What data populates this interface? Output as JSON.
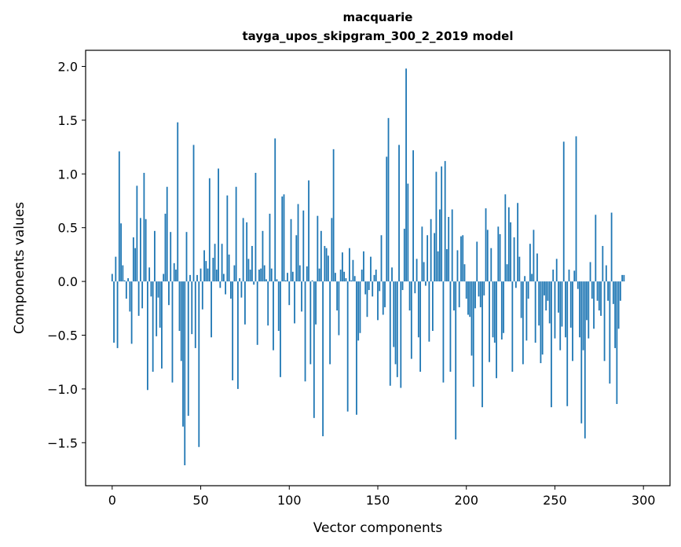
{
  "chart_data": {
    "type": "bar",
    "title": "macquarie",
    "subtitle": "tayga_upos_skipgram_300_2_2019 model",
    "xlabel": "Vector components",
    "ylabel": "Components values",
    "xlim": [
      -15,
      315
    ],
    "ylim": [
      -1.9,
      2.15
    ],
    "xticks": [
      0,
      50,
      100,
      150,
      200,
      250,
      300
    ],
    "xtick_labels": [
      "0",
      "50",
      "100",
      "150",
      "200",
      "250",
      "300"
    ],
    "yticks": [
      -1.5,
      -1.0,
      -0.5,
      0.0,
      0.5,
      1.0,
      1.5,
      2.0
    ],
    "ytick_labels": [
      "−1.5",
      "−1.0",
      "−0.5",
      "0.0",
      "0.5",
      "1.0",
      "1.5",
      "2.0"
    ],
    "bar_color": "#1f77b4",
    "grid": false,
    "values": [
      0.07,
      -0.57,
      0.23,
      -0.62,
      1.21,
      0.54,
      0.15,
      0.01,
      -0.16,
      0.03,
      -0.28,
      -0.58,
      0.41,
      0.31,
      0.89,
      -0.32,
      0.59,
      -0.25,
      1.01,
      0.58,
      -1.01,
      0.13,
      -0.14,
      -0.84,
      0.47,
      -0.51,
      -0.15,
      -0.43,
      -0.81,
      0.07,
      0.63,
      0.88,
      -0.22,
      0.46,
      -0.94,
      0.17,
      0.11,
      1.48,
      -0.46,
      -0.74,
      -1.35,
      -1.71,
      0.46,
      -1.25,
      0.06,
      -0.49,
      1.27,
      -0.62,
      0.06,
      -1.54,
      0.12,
      -0.26,
      0.29,
      0.19,
      0.12,
      0.96,
      -0.52,
      0.22,
      0.35,
      0.11,
      1.05,
      -0.06,
      0.35,
      0.07,
      -0.12,
      0.8,
      0.25,
      -0.16,
      -0.92,
      0.15,
      0.88,
      -1.0,
      0.03,
      -0.15,
      0.59,
      -0.4,
      0.55,
      0.21,
      0.11,
      0.33,
      -0.03,
      1.01,
      -0.59,
      0.11,
      0.12,
      0.47,
      0.15,
      0.02,
      -0.41,
      0.63,
      0.12,
      -0.64,
      1.33,
      0.02,
      -0.46,
      -0.89,
      0.79,
      0.81,
      0.01,
      0.08,
      -0.22,
      0.58,
      0.09,
      -0.39,
      0.43,
      0.72,
      0.15,
      -0.28,
      0.66,
      -0.93,
      0.14,
      0.94,
      -0.77,
      0.01,
      -1.27,
      -0.4,
      0.61,
      0.12,
      0.47,
      -1.44,
      0.33,
      0.31,
      0.24,
      -0.77,
      0.59,
      1.23,
      0.08,
      -0.27,
      -0.5,
      0.11,
      0.27,
      0.09,
      0.03,
      -1.21,
      0.31,
      0.01,
      0.2,
      0.05,
      -1.24,
      -0.55,
      -0.48,
      0.11,
      0.28,
      -0.12,
      -0.33,
      -0.08,
      0.23,
      -0.14,
      0.06,
      0.11,
      -0.36,
      -0.09,
      0.43,
      -0.31,
      -0.24,
      1.16,
      1.52,
      -0.97,
      0.13,
      -0.61,
      -0.77,
      -0.89,
      1.27,
      -0.99,
      -0.08,
      0.49,
      1.98,
      0.91,
      -0.27,
      -0.72,
      1.22,
      -0.11,
      0.21,
      -0.52,
      -0.84,
      0.51,
      0.18,
      -0.04,
      0.43,
      -0.56,
      0.58,
      -0.46,
      0.45,
      1.02,
      0.28,
      0.67,
      1.07,
      -0.94,
      1.12,
      0.3,
      0.6,
      -0.84,
      0.67,
      -0.27,
      -1.47,
      0.29,
      -0.24,
      0.42,
      0.43,
      0.16,
      -0.16,
      -0.31,
      -0.33,
      -0.69,
      -0.98,
      -0.25,
      0.37,
      -0.14,
      -0.24,
      -1.17,
      -0.13,
      0.68,
      0.48,
      -0.75,
      0.31,
      -0.52,
      -0.57,
      -0.9,
      0.51,
      0.44,
      -0.54,
      -0.48,
      0.81,
      0.16,
      0.69,
      0.55,
      -0.84,
      0.41,
      -0.06,
      0.73,
      0.23,
      -0.34,
      -0.77,
      0.05,
      -0.55,
      -0.16,
      0.35,
      0.07,
      0.48,
      -0.57,
      0.26,
      -0.41,
      -0.76,
      -0.68,
      -0.13,
      -0.27,
      -0.18,
      -0.39,
      -1.17,
      0.11,
      -0.53,
      0.21,
      -0.29,
      -0.64,
      -0.42,
      1.3,
      -0.52,
      -1.16,
      0.11,
      -0.43,
      -0.74,
      0.1,
      1.35,
      -0.07,
      -0.52,
      -1.32,
      -0.64,
      -1.46,
      -0.36,
      -0.53,
      0.18,
      -0.16,
      -0.44,
      0.62,
      -0.18,
      -0.27,
      -0.32,
      0.33,
      -0.74,
      0.15,
      -0.18,
      -0.95,
      0.64,
      -0.21,
      -0.62,
      -1.14,
      -0.44,
      -0.18,
      0.06,
      0.06
    ]
  }
}
